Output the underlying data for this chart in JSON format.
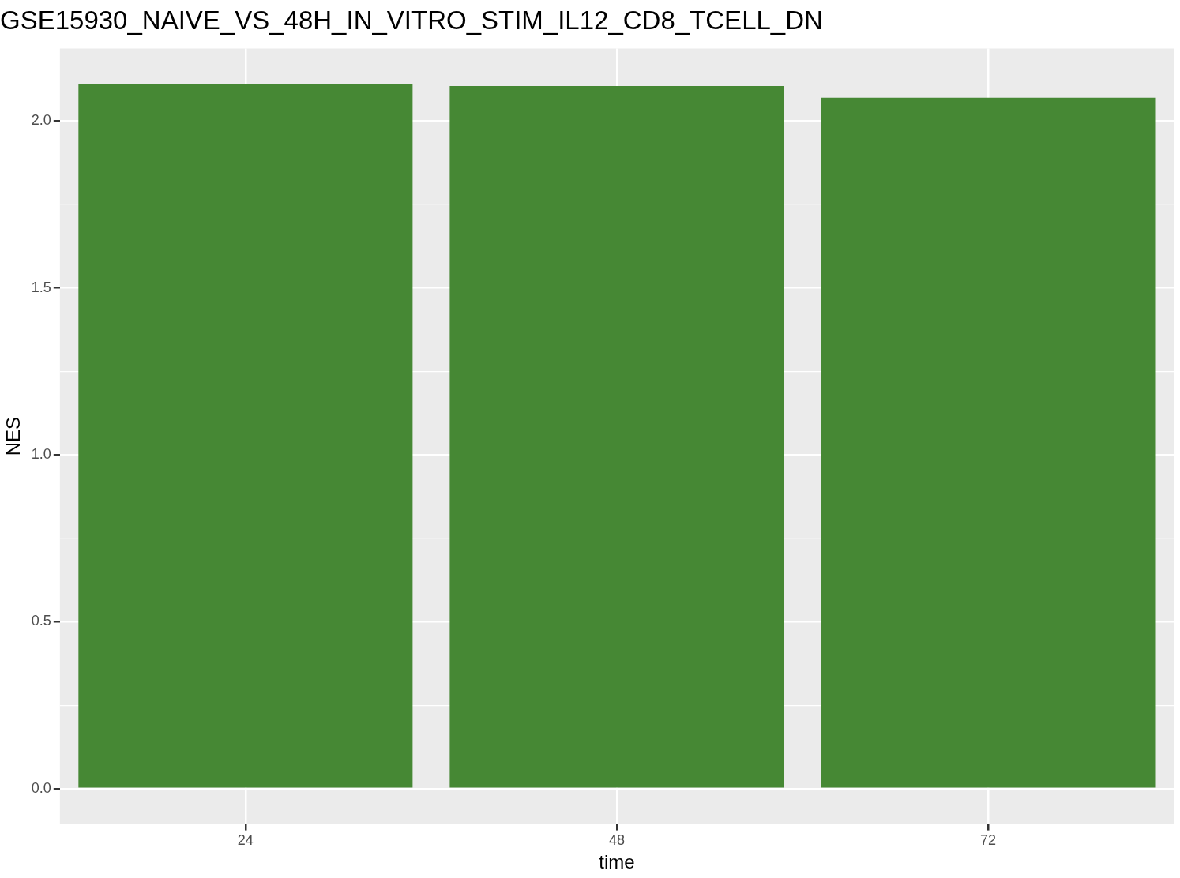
{
  "chart_data": {
    "type": "bar",
    "title": "GSE15930_NAIVE_VS_48H_IN_VITRO_STIM_IL12_CD8_TCELL_DN",
    "xlabel": "time",
    "ylabel": "NES",
    "categories": [
      "24",
      "48",
      "72"
    ],
    "values": [
      2.11,
      2.105,
      2.07
    ],
    "color": "#468834",
    "ylim": [
      -0.106,
      2.217
    ],
    "yticks": [
      {
        "value": 0,
        "label": "0.0"
      },
      {
        "value": 0.25,
        "label": null
      },
      0.5,
      {
        "value": 0.75,
        "label": null
      },
      {
        "value": 1,
        "label": "1.0"
      },
      {
        "value": 1.25,
        "label": null
      },
      1.5,
      {
        "value": 1.75,
        "label": null
      },
      {
        "value": 2,
        "label": "2.0"
      }
    ],
    "grid": true,
    "legend": false
  }
}
